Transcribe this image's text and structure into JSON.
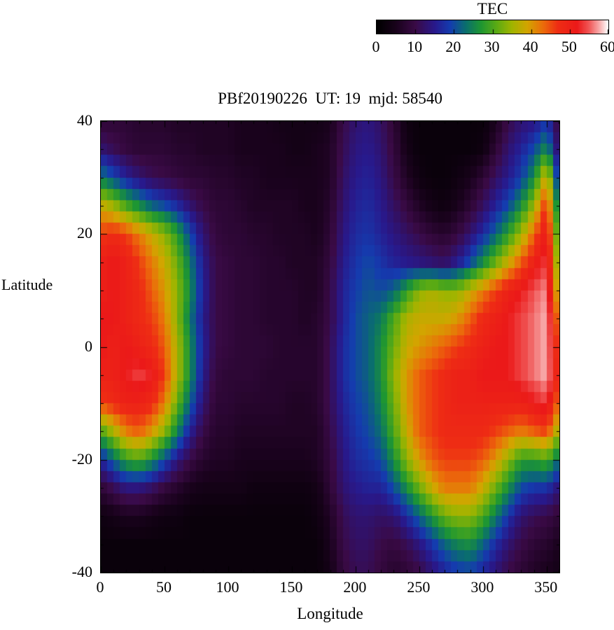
{
  "chart_data": {
    "type": "heatmap",
    "title": "PBf20190226  UT: 19  mjd: 58540",
    "xlabel": "Longitude",
    "ylabel": "Latitude",
    "xlim": [
      0,
      360
    ],
    "ylim": [
      -40,
      40
    ],
    "grid_on": false,
    "xticks": [
      {
        "value": 0,
        "label": "0"
      },
      {
        "value": 50,
        "label": "50"
      },
      {
        "value": 100,
        "label": "100"
      },
      {
        "value": 150,
        "label": "150"
      },
      {
        "value": 200,
        "label": "200"
      },
      {
        "value": 250,
        "label": "250"
      },
      {
        "value": 300,
        "label": "300"
      },
      {
        "value": 350,
        "label": "350"
      }
    ],
    "yticks": [
      {
        "value": 40,
        "label": "40"
      },
      {
        "value": 20,
        "label": "20"
      },
      {
        "value": 0,
        "label": "0"
      },
      {
        "value": -20,
        "label": "-20"
      },
      {
        "value": -40,
        "label": "-40"
      }
    ],
    "colorbar": {
      "title": "TEC",
      "min": 0,
      "max": 60,
      "position": "top",
      "ticks": [
        {
          "value": 0,
          "label": "0"
        },
        {
          "value": 10,
          "label": "10"
        },
        {
          "value": 20,
          "label": "20"
        },
        {
          "value": 30,
          "label": "30"
        },
        {
          "value": 40,
          "label": "40"
        },
        {
          "value": 50,
          "label": "50"
        },
        {
          "value": 60,
          "label": "60"
        }
      ]
    },
    "colormap_stops": [
      [
        0,
        0,
        0,
        0
      ],
      [
        5,
        25,
        2,
        28
      ],
      [
        10,
        58,
        10,
        70
      ],
      [
        15,
        40,
        25,
        140
      ],
      [
        19,
        20,
        60,
        175
      ],
      [
        23,
        10,
        110,
        110
      ],
      [
        27,
        30,
        150,
        50
      ],
      [
        31,
        90,
        170,
        20
      ],
      [
        35,
        160,
        180,
        0
      ],
      [
        39,
        210,
        165,
        0
      ],
      [
        43,
        235,
        110,
        10
      ],
      [
        47,
        238,
        45,
        20
      ],
      [
        52,
        235,
        25,
        25
      ],
      [
        55,
        240,
        85,
        85
      ],
      [
        58,
        248,
        180,
        180
      ],
      [
        60,
        255,
        255,
        255
      ]
    ],
    "grid": {
      "lon_start": 0,
      "lon_step": 10,
      "lat_start": 40,
      "lat_step": -5,
      "units": "TECU",
      "values": [
        [
          8,
          8,
          8,
          7,
          7,
          7,
          6,
          6,
          6,
          6,
          6,
          5,
          5,
          5,
          4,
          4,
          4,
          4,
          5,
          10,
          13,
          14,
          12,
          8,
          3,
          2,
          2,
          2,
          2,
          2,
          2,
          5,
          10,
          13,
          14,
          18,
          8
        ],
        [
          13,
          11,
          9,
          8,
          8,
          8,
          7,
          7,
          6,
          6,
          6,
          5,
          5,
          5,
          5,
          4,
          4,
          5,
          6,
          11,
          14,
          15,
          13,
          9,
          4,
          2,
          2,
          2,
          2,
          2,
          3,
          8,
          13,
          16,
          20,
          26,
          10
        ],
        [
          24,
          20,
          16,
          13,
          11,
          10,
          9,
          8,
          8,
          7,
          7,
          6,
          6,
          5,
          5,
          5,
          5,
          5,
          6,
          12,
          15,
          16,
          14,
          10,
          6,
          3,
          2,
          2,
          3,
          5,
          8,
          12,
          15,
          19,
          26,
          40,
          14
        ],
        [
          38,
          35,
          30,
          26,
          22,
          20,
          17,
          13,
          10,
          8,
          8,
          7,
          6,
          6,
          6,
          6,
          5,
          5,
          7,
          13,
          16,
          17,
          15,
          12,
          9,
          6,
          4,
          3,
          5,
          8,
          12,
          16,
          20,
          26,
          35,
          48,
          20
        ],
        [
          46,
          48,
          46,
          42,
          38,
          34,
          28,
          20,
          13,
          9,
          8,
          8,
          7,
          7,
          6,
          6,
          6,
          5,
          8,
          14,
          17,
          18,
          16,
          14,
          12,
          10,
          8,
          7,
          9,
          13,
          17,
          22,
          28,
          35,
          44,
          52,
          26
        ],
        [
          50,
          52,
          50,
          46,
          42,
          38,
          32,
          24,
          15,
          10,
          9,
          8,
          8,
          7,
          7,
          6,
          6,
          6,
          9,
          15,
          18,
          20,
          18,
          16,
          15,
          14,
          13,
          12,
          15,
          20,
          26,
          32,
          38,
          44,
          50,
          54,
          30
        ],
        [
          50,
          52,
          50,
          48,
          44,
          40,
          34,
          26,
          16,
          10,
          9,
          8,
          8,
          7,
          7,
          7,
          6,
          6,
          10,
          16,
          19,
          21,
          20,
          22,
          28,
          34,
          36,
          34,
          34,
          38,
          42,
          46,
          50,
          52,
          55,
          57,
          34
        ],
        [
          52,
          52,
          50,
          48,
          46,
          42,
          34,
          24,
          15,
          10,
          9,
          8,
          8,
          7,
          7,
          7,
          6,
          7,
          10,
          16,
          20,
          22,
          24,
          30,
          36,
          38,
          38,
          38,
          40,
          44,
          48,
          50,
          52,
          54,
          56,
          58,
          40
        ],
        [
          52,
          50,
          52,
          50,
          48,
          44,
          36,
          26,
          16,
          10,
          9,
          8,
          8,
          8,
          7,
          7,
          7,
          7,
          11,
          17,
          20,
          22,
          26,
          32,
          38,
          40,
          42,
          44,
          46,
          48,
          50,
          52,
          52,
          54,
          56,
          58,
          44
        ],
        [
          50,
          50,
          52,
          54,
          52,
          46,
          36,
          26,
          15,
          9,
          8,
          8,
          8,
          7,
          7,
          7,
          7,
          7,
          11,
          17,
          20,
          22,
          26,
          34,
          40,
          44,
          46,
          48,
          50,
          50,
          52,
          52,
          52,
          54,
          56,
          58,
          46
        ],
        [
          46,
          48,
          50,
          50,
          48,
          42,
          32,
          22,
          13,
          8,
          8,
          7,
          7,
          7,
          7,
          6,
          6,
          7,
          11,
          16,
          19,
          21,
          25,
          32,
          40,
          44,
          46,
          48,
          50,
          50,
          50,
          50,
          50,
          50,
          52,
          54,
          42
        ],
        [
          30,
          36,
          42,
          44,
          40,
          34,
          25,
          16,
          10,
          7,
          7,
          6,
          6,
          6,
          6,
          6,
          6,
          6,
          10,
          15,
          18,
          20,
          23,
          30,
          38,
          44,
          46,
          48,
          48,
          48,
          48,
          46,
          44,
          42,
          44,
          46,
          34
        ],
        [
          16,
          22,
          28,
          30,
          26,
          20,
          14,
          10,
          7,
          6,
          6,
          5,
          5,
          5,
          5,
          5,
          5,
          6,
          9,
          14,
          17,
          18,
          20,
          26,
          34,
          40,
          44,
          46,
          46,
          46,
          44,
          40,
          34,
          28,
          28,
          30,
          22
        ],
        [
          8,
          11,
          14,
          14,
          12,
          9,
          7,
          5,
          4,
          4,
          4,
          4,
          3,
          3,
          3,
          3,
          3,
          4,
          8,
          13,
          15,
          16,
          16,
          20,
          26,
          32,
          38,
          42,
          42,
          42,
          38,
          32,
          26,
          20,
          18,
          18,
          13
        ],
        [
          3,
          4,
          5,
          5,
          4,
          3,
          3,
          2,
          2,
          2,
          2,
          2,
          2,
          2,
          2,
          2,
          2,
          3,
          6,
          11,
          13,
          13,
          12,
          13,
          17,
          22,
          27,
          32,
          34,
          34,
          30,
          24,
          18,
          13,
          11,
          10,
          8
        ],
        [
          2,
          2,
          2,
          2,
          2,
          2,
          2,
          2,
          2,
          2,
          2,
          2,
          2,
          2,
          2,
          2,
          2,
          2,
          5,
          10,
          12,
          12,
          10,
          9,
          11,
          14,
          18,
          22,
          25,
          26,
          22,
          17,
          13,
          10,
          8,
          7,
          5
        ],
        [
          2,
          2,
          2,
          2,
          2,
          2,
          2,
          2,
          2,
          2,
          2,
          2,
          2,
          2,
          2,
          2,
          2,
          2,
          4,
          9,
          11,
          11,
          9,
          7,
          8,
          10,
          13,
          16,
          18,
          19,
          16,
          13,
          10,
          8,
          6,
          5,
          4
        ]
      ]
    }
  }
}
